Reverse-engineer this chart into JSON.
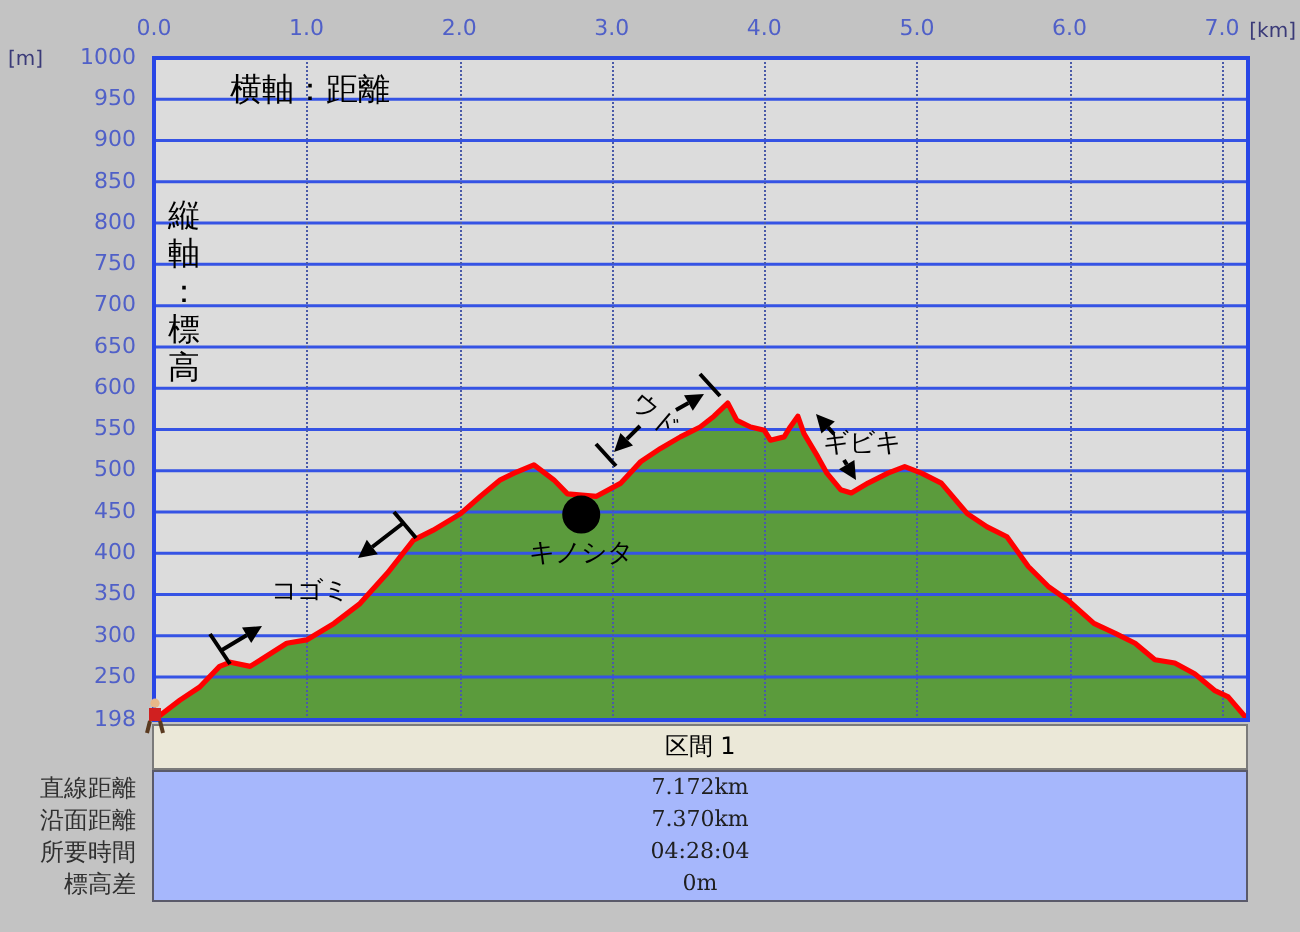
{
  "chart_data": [
    {
      "type": "area",
      "xlabel": "[km]",
      "ylabel": "[m]",
      "x": [
        0,
        0.17,
        0.3,
        0.43,
        0.5,
        0.63,
        0.7,
        0.87,
        1.0,
        1.18,
        1.35,
        1.53,
        1.7,
        1.83,
        2.01,
        2.14,
        2.27,
        2.36,
        2.49,
        2.62,
        2.71,
        2.9,
        3.06,
        3.19,
        3.32,
        3.45,
        3.58,
        3.67,
        3.76,
        3.82,
        3.91,
        4.0,
        4.04,
        4.13,
        4.17,
        4.22,
        4.26,
        4.35,
        4.41,
        4.5,
        4.57,
        4.68,
        4.81,
        4.92,
        5.03,
        5.16,
        5.33,
        5.46,
        5.59,
        5.73,
        5.86,
        5.99,
        6.16,
        6.3,
        6.43,
        6.56,
        6.69,
        6.82,
        6.95,
        7.04,
        7.17
      ],
      "series": [
        {
          "type": "area",
          "color": "#5b9b3c",
          "values": [
            198,
            222,
            238,
            263,
            268,
            263,
            271,
            291,
            295,
            315,
            339,
            376,
            416,
            428,
            448,
            469,
            489,
            497,
            507,
            489,
            472,
            469,
            485,
            511,
            527,
            541,
            553,
            566,
            582,
            561,
            553,
            549,
            537,
            541,
            553,
            566,
            545,
            517,
            497,
            477,
            473,
            485,
            497,
            505,
            497,
            485,
            448,
            432,
            420,
            384,
            360,
            343,
            315,
            303,
            291,
            271,
            267,
            254,
            234,
            226,
            198
          ]
        },
        {
          "type": "scatter",
          "color": "#000000",
          "x": [
            2.8
          ],
          "values": [
            447
          ],
          "marker": "circle"
        }
      ],
      "xlim": [
        0,
        7.17
      ],
      "xticks": [
        {
          "value": 0,
          "label": "0.0"
        },
        {
          "value": 1,
          "label": "1.0"
        },
        {
          "value": 2,
          "label": "2.0"
        },
        {
          "value": 3,
          "label": "3.0"
        },
        {
          "value": 4,
          "label": "4.0"
        },
        {
          "value": 5,
          "label": "5.0"
        },
        {
          "value": 6,
          "label": "6.0"
        },
        {
          "value": 7,
          "label": "7.0"
        }
      ],
      "ylim": [
        198,
        1000
      ],
      "yticks": [
        198,
        250,
        300,
        350,
        400,
        450,
        500,
        550,
        600,
        650,
        700,
        750,
        800,
        850,
        900,
        950,
        1000
      ],
      "grid": true,
      "annotations": [
        "横軸：距離",
        "縦軸：標高",
        "コゴミ",
        {
          "text": "キノシタ",
          "x": 2.8,
          "y": 447
        },
        "ウド",
        "ギビキ"
      ]
    },
    {
      "type": "other",
      "title": "区間 1",
      "annotations": [
        "直線距離",
        "7.172km",
        "沿面距離",
        "7.370km",
        "所要時間",
        "04:28:04",
        "標高差",
        "0m"
      ]
    }
  ]
}
